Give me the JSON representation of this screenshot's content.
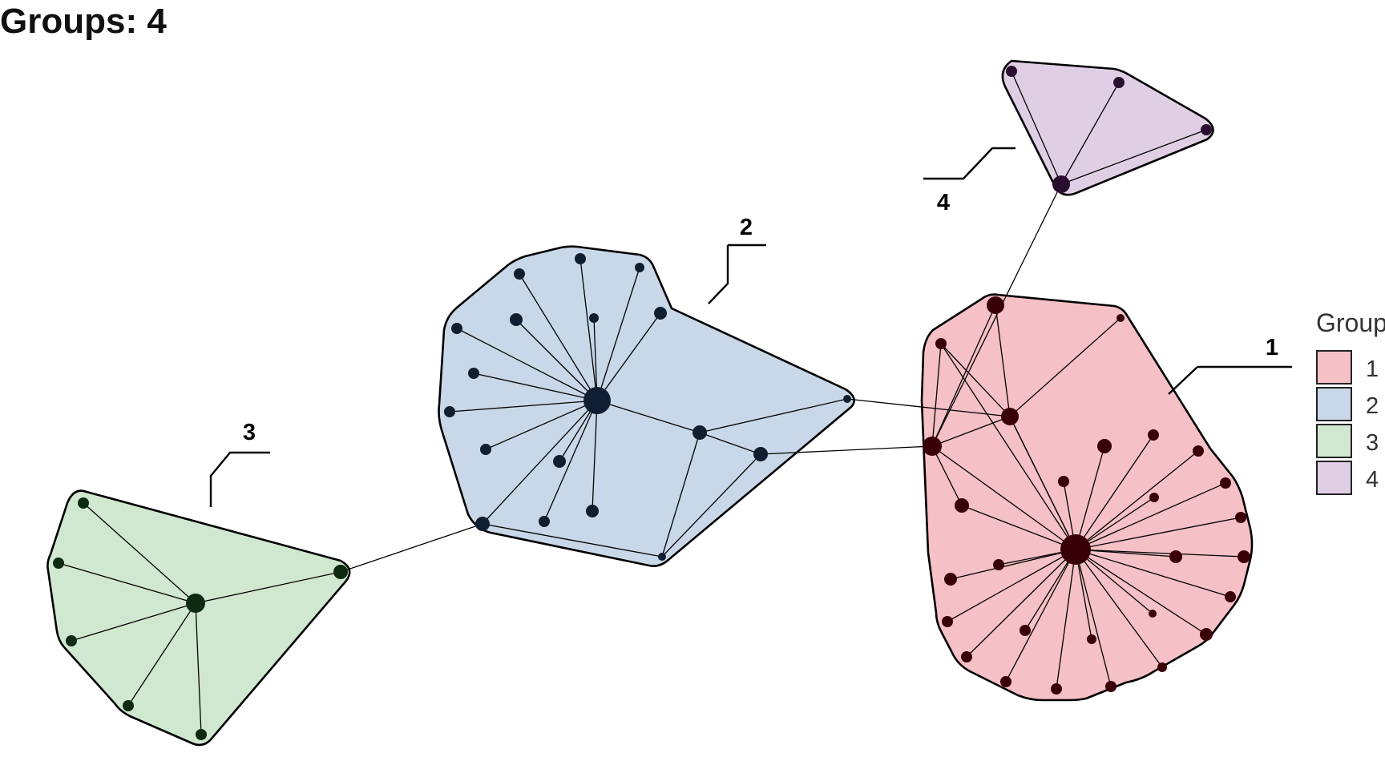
{
  "title": "Groups: 4",
  "legend": {
    "title": "Group",
    "items": [
      {
        "label": "1",
        "fill": "#f5c0c6"
      },
      {
        "label": "2",
        "fill": "#c9d8e8"
      },
      {
        "label": "3",
        "fill": "#d0e8d0"
      },
      {
        "label": "4",
        "fill": "#e0cfe4"
      }
    ]
  },
  "colors": {
    "group1_node": "#3a0008",
    "group2_node": "#0f1e30",
    "group3_node": "#0e2a10",
    "group4_node": "#2a0e30",
    "hull_stroke": "#000000",
    "edge": "#000000"
  },
  "groups": [
    {
      "id": "1",
      "label": "1"
    },
    {
      "id": "2",
      "label": "2"
    },
    {
      "id": "3",
      "label": "3"
    },
    {
      "id": "4",
      "label": "4"
    }
  ]
}
